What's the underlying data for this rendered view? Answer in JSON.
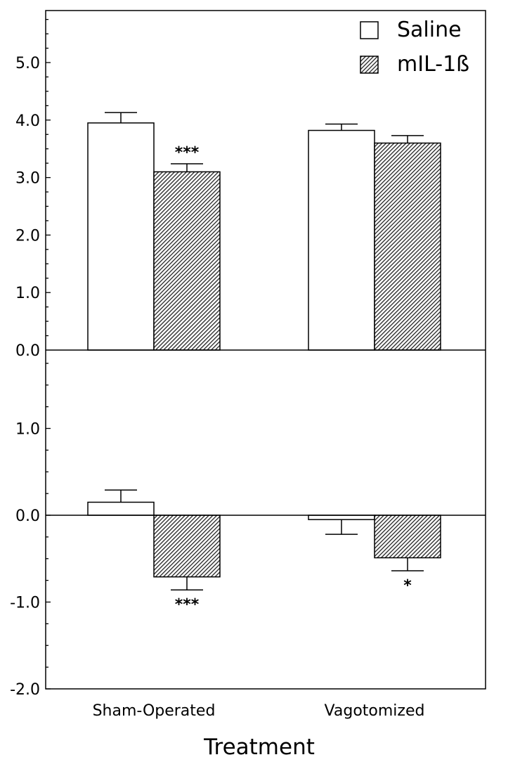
{
  "chart_data": {
    "type": "bar",
    "xlabel": "Treatment",
    "categories": [
      "Sham-Operated",
      "Vagotomized"
    ],
    "legend": {
      "position": "top-right",
      "entries": [
        "Saline",
        "mIL-1ß"
      ]
    },
    "grid": false,
    "panels": [
      {
        "ylim": [
          0,
          5.8
        ],
        "yticks": [
          "0.0",
          "1.0",
          "2.0",
          "3.0",
          "4.0",
          "5.0"
        ],
        "series": [
          {
            "name": "Saline",
            "fill": "open",
            "values": [
              3.95,
              3.82
            ],
            "errors": [
              0.18,
              0.11
            ]
          },
          {
            "name": "mIL-1ß",
            "fill": "hatched",
            "values": [
              3.1,
              3.6
            ],
            "errors": [
              0.14,
              0.13
            ]
          }
        ],
        "significance": [
          [
            "",
            ""
          ],
          [
            "***",
            ""
          ]
        ]
      },
      {
        "ylim": [
          -2.0,
          1.95
        ],
        "yticks": [
          "-2.0",
          "-1.0",
          "0.0",
          "1.0"
        ],
        "series": [
          {
            "name": "Saline",
            "fill": "open",
            "values": [
              0.15,
              -0.05
            ],
            "errors": [
              0.14,
              0.17
            ]
          },
          {
            "name": "mIL-1ß",
            "fill": "hatched",
            "values": [
              -0.71,
              -0.49
            ],
            "errors": [
              0.15,
              0.15
            ]
          }
        ],
        "significance": [
          [
            "",
            ""
          ],
          [
            "***",
            "*"
          ]
        ]
      }
    ]
  }
}
